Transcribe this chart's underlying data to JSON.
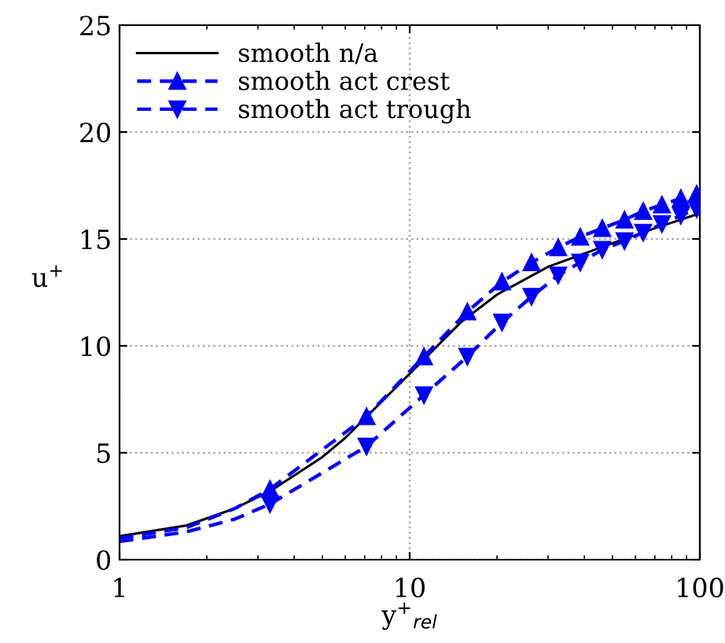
{
  "chart_data": {
    "type": "line",
    "xlabel": "y$^{+}$$_{rel}$",
    "ylabel": "u$^{+}$",
    "log": "x",
    "xlim": [
      1,
      100
    ],
    "xticks": [
      1,
      10,
      100
    ],
    "ylim": [
      0,
      25
    ],
    "yticks": [
      0,
      5,
      10,
      15,
      20,
      25
    ],
    "grid": true,
    "legend": "top left",
    "series": [
      {
        "name": "smooth n/a",
        "color": "#000000",
        "line_style": "solid",
        "marker": "none",
        "x": [
          1,
          1.7,
          2.5,
          3.3,
          5,
          6,
          10,
          15,
          20,
          30,
          50,
          70,
          100
        ],
        "values": [
          1.1,
          1.6,
          2.4,
          3.2,
          4.8,
          5.7,
          8.7,
          11.1,
          12.4,
          13.7,
          14.8,
          15.5,
          16.2
        ]
      },
      {
        "name": "smooth act crest",
        "color": "#0000ff",
        "line_style": "dashed",
        "marker": "triangle",
        "x": [
          3.3,
          7.1,
          11.2,
          15.8,
          20.8,
          26.3,
          32.5,
          38.7,
          46.1,
          55,
          63.8,
          74,
          86,
          97.5
        ],
        "values": [
          3.3,
          6.7,
          9.5,
          11.6,
          13.0,
          13.9,
          14.6,
          15.1,
          15.5,
          15.9,
          16.3,
          16.6,
          16.9,
          17.1
        ]
      },
      {
        "name": "smooth act trough",
        "color": "#0000ff",
        "line_style": "dashed",
        "marker": "triangle_down",
        "x": [
          3.3,
          7.1,
          11.2,
          15.8,
          20.8,
          26.3,
          32.5,
          38.7,
          46.1,
          55,
          63.8,
          74,
          86,
          97.5
        ],
        "values": [
          2.6,
          5.3,
          7.7,
          9.5,
          11.1,
          12.3,
          13.3,
          13.9,
          14.5,
          14.9,
          15.3,
          15.7,
          16.1,
          16.4
        ]
      },
      {
        "color": "#0000ff",
        "line_style": "dashed",
        "marker": "none",
        "x": [
          1,
          1.7,
          2.5,
          3.3
        ],
        "values": [
          1.0,
          1.5,
          2.4,
          3.3
        ]
      },
      {
        "color": "#0000ff",
        "line_style": "dashed",
        "marker": "none",
        "x": [
          1,
          1.7,
          2.5,
          3.3
        ],
        "values": [
          0.85,
          1.3,
          1.9,
          2.6
        ]
      }
    ]
  }
}
